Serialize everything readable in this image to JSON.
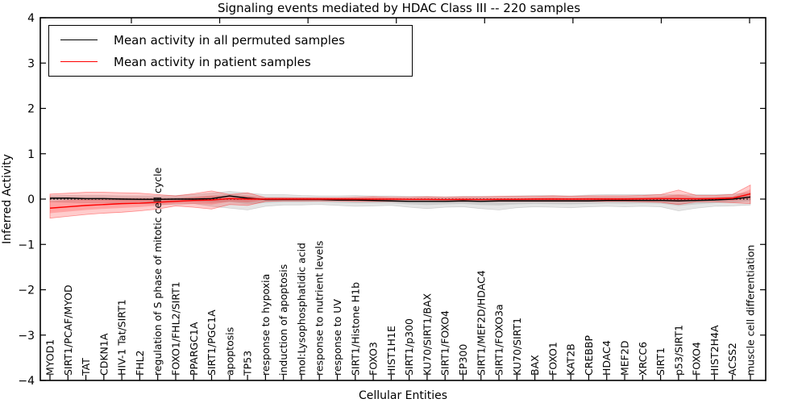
{
  "chart_data": {
    "type": "line",
    "title": "Signaling events mediated by HDAC Class III -- 220 samples",
    "xlabel": "Cellular Entities",
    "ylabel": "Inferred Activity",
    "ylim": [
      -4,
      4
    ],
    "yticks": [
      4,
      3,
      2,
      1,
      0,
      -1,
      -2,
      -3,
      -4
    ],
    "ytick_labels": [
      "4",
      "3",
      "2",
      "1",
      "0",
      "−1",
      "−2",
      "−3",
      "−4"
    ],
    "grid": false,
    "legend_position": "upper left",
    "categories": [
      "MYOD1",
      "SIRT1/PCAF/MYOD",
      "TAT",
      "CDKN1A",
      "HIV-1 Tat/SIRT1",
      "FHL2",
      "regulation of S phase of mitotic cell cycle",
      "FOXO1/FHL2/SIRT1",
      "PPARGC1A",
      "SIRT1/PGC1A",
      "apoptosis",
      "TP53",
      "response to hypoxia",
      "induction of apoptosis",
      "mol:Lysophosphatidic acid",
      "response to nutrient levels",
      "response to UV",
      "SIRT1/Histone H1b",
      "FOXO3",
      "HIST1H1E",
      "SIRT1/p300",
      "KU70/SIRT1/BAX",
      "SIRT1/FOXO4",
      "EP300",
      "SIRT1/MEF2D/HDAC4",
      "SIRT1/FOXO3a",
      "KU70/SIRT1",
      "BAX",
      "FOXO1",
      "KAT2B",
      "CREBBP",
      "HDAC4",
      "MEF2D",
      "XRCC6",
      "SIRT1",
      "p53/SIRT1",
      "FOXO4",
      "HIST2H4A",
      "ACSS2",
      "muscle cell differentiation"
    ],
    "series": [
      {
        "name": "Mean activity in all permuted samples",
        "color": "#000000",
        "values": [
          0.02,
          0.02,
          0.01,
          0.01,
          0.0,
          -0.005,
          -0.005,
          0.0,
          0.0,
          0.01,
          0.07,
          0.02,
          -0.01,
          -0.01,
          -0.01,
          -0.01,
          -0.02,
          -0.02,
          -0.03,
          -0.04,
          -0.05,
          -0.05,
          -0.05,
          -0.04,
          -0.05,
          -0.04,
          -0.04,
          -0.04,
          -0.04,
          -0.04,
          -0.04,
          -0.03,
          -0.03,
          -0.03,
          -0.03,
          -0.04,
          -0.03,
          -0.02,
          0.0,
          0.045
        ]
      },
      {
        "name": "Mean activity in patient samples",
        "color": "#ff0000",
        "values": [
          -0.2,
          -0.17,
          -0.14,
          -0.12,
          -0.1,
          -0.09,
          -0.07,
          -0.05,
          -0.03,
          -0.02,
          0.01,
          0.0,
          0.0,
          0.0,
          0.0,
          0.0,
          0.0,
          0.0,
          0.0,
          0.0,
          -0.005,
          -0.005,
          -0.01,
          -0.005,
          -0.01,
          -0.005,
          -0.005,
          0.0,
          0.0,
          0.0,
          0.0,
          0.0,
          0.0,
          0.005,
          0.01,
          0.01,
          0.005,
          0.01,
          0.02,
          0.115
        ]
      }
    ],
    "bands": [
      {
        "name": "permuted sample range",
        "series": 0,
        "fill": "rgba(0,0,0,0.10)",
        "edge": "rgba(0,0,0,0.13)",
        "upper": [
          0.07,
          0.08,
          0.08,
          0.08,
          0.07,
          0.07,
          0.07,
          0.08,
          0.1,
          0.13,
          0.17,
          0.13,
          0.1,
          0.1,
          0.08,
          0.07,
          0.07,
          0.08,
          0.07,
          0.07,
          0.06,
          0.06,
          0.05,
          0.06,
          0.06,
          0.06,
          0.07,
          0.08,
          0.08,
          0.07,
          0.09,
          0.1,
          0.1,
          0.1,
          0.1,
          0.09,
          0.1,
          0.1,
          0.11,
          0.14
        ],
        "lower": [
          -0.06,
          -0.07,
          -0.08,
          -0.08,
          -0.09,
          -0.1,
          -0.11,
          -0.12,
          -0.1,
          -0.16,
          -0.2,
          -0.24,
          -0.16,
          -0.13,
          -0.13,
          -0.12,
          -0.14,
          -0.16,
          -0.15,
          -0.14,
          -0.18,
          -0.21,
          -0.18,
          -0.17,
          -0.21,
          -0.24,
          -0.19,
          -0.17,
          -0.18,
          -0.19,
          -0.17,
          -0.16,
          -0.17,
          -0.16,
          -0.17,
          -0.26,
          -0.2,
          -0.16,
          -0.15,
          -0.13
        ]
      },
      {
        "name": "patient sample range",
        "series": 1,
        "fill": "rgba(255,0,0,0.20)",
        "edge": "rgba(255,0,0,0.40)",
        "upper": [
          0.11,
          0.13,
          0.15,
          0.15,
          0.14,
          0.13,
          0.1,
          0.07,
          0.12,
          0.18,
          0.1,
          0.14,
          0.03,
          0.03,
          0.03,
          0.03,
          0.03,
          0.04,
          0.05,
          0.04,
          0.04,
          0.05,
          0.04,
          0.05,
          0.05,
          0.06,
          0.06,
          0.06,
          0.07,
          0.06,
          0.07,
          0.07,
          0.07,
          0.08,
          0.1,
          0.2,
          0.08,
          0.08,
          0.1,
          0.31
        ],
        "lower": [
          -0.42,
          -0.38,
          -0.34,
          -0.31,
          -0.29,
          -0.26,
          -0.22,
          -0.15,
          -0.18,
          -0.22,
          -0.12,
          -0.14,
          -0.05,
          -0.04,
          -0.04,
          -0.04,
          -0.04,
          -0.05,
          -0.05,
          -0.05,
          -0.05,
          -0.05,
          -0.05,
          -0.05,
          -0.05,
          -0.05,
          -0.05,
          -0.05,
          -0.05,
          -0.05,
          -0.05,
          -0.05,
          -0.05,
          -0.06,
          -0.07,
          -0.12,
          -0.06,
          -0.06,
          -0.08,
          -0.1
        ]
      }
    ],
    "zero_line": {
      "value": 0,
      "style": "dotted",
      "color": "#000000"
    }
  }
}
